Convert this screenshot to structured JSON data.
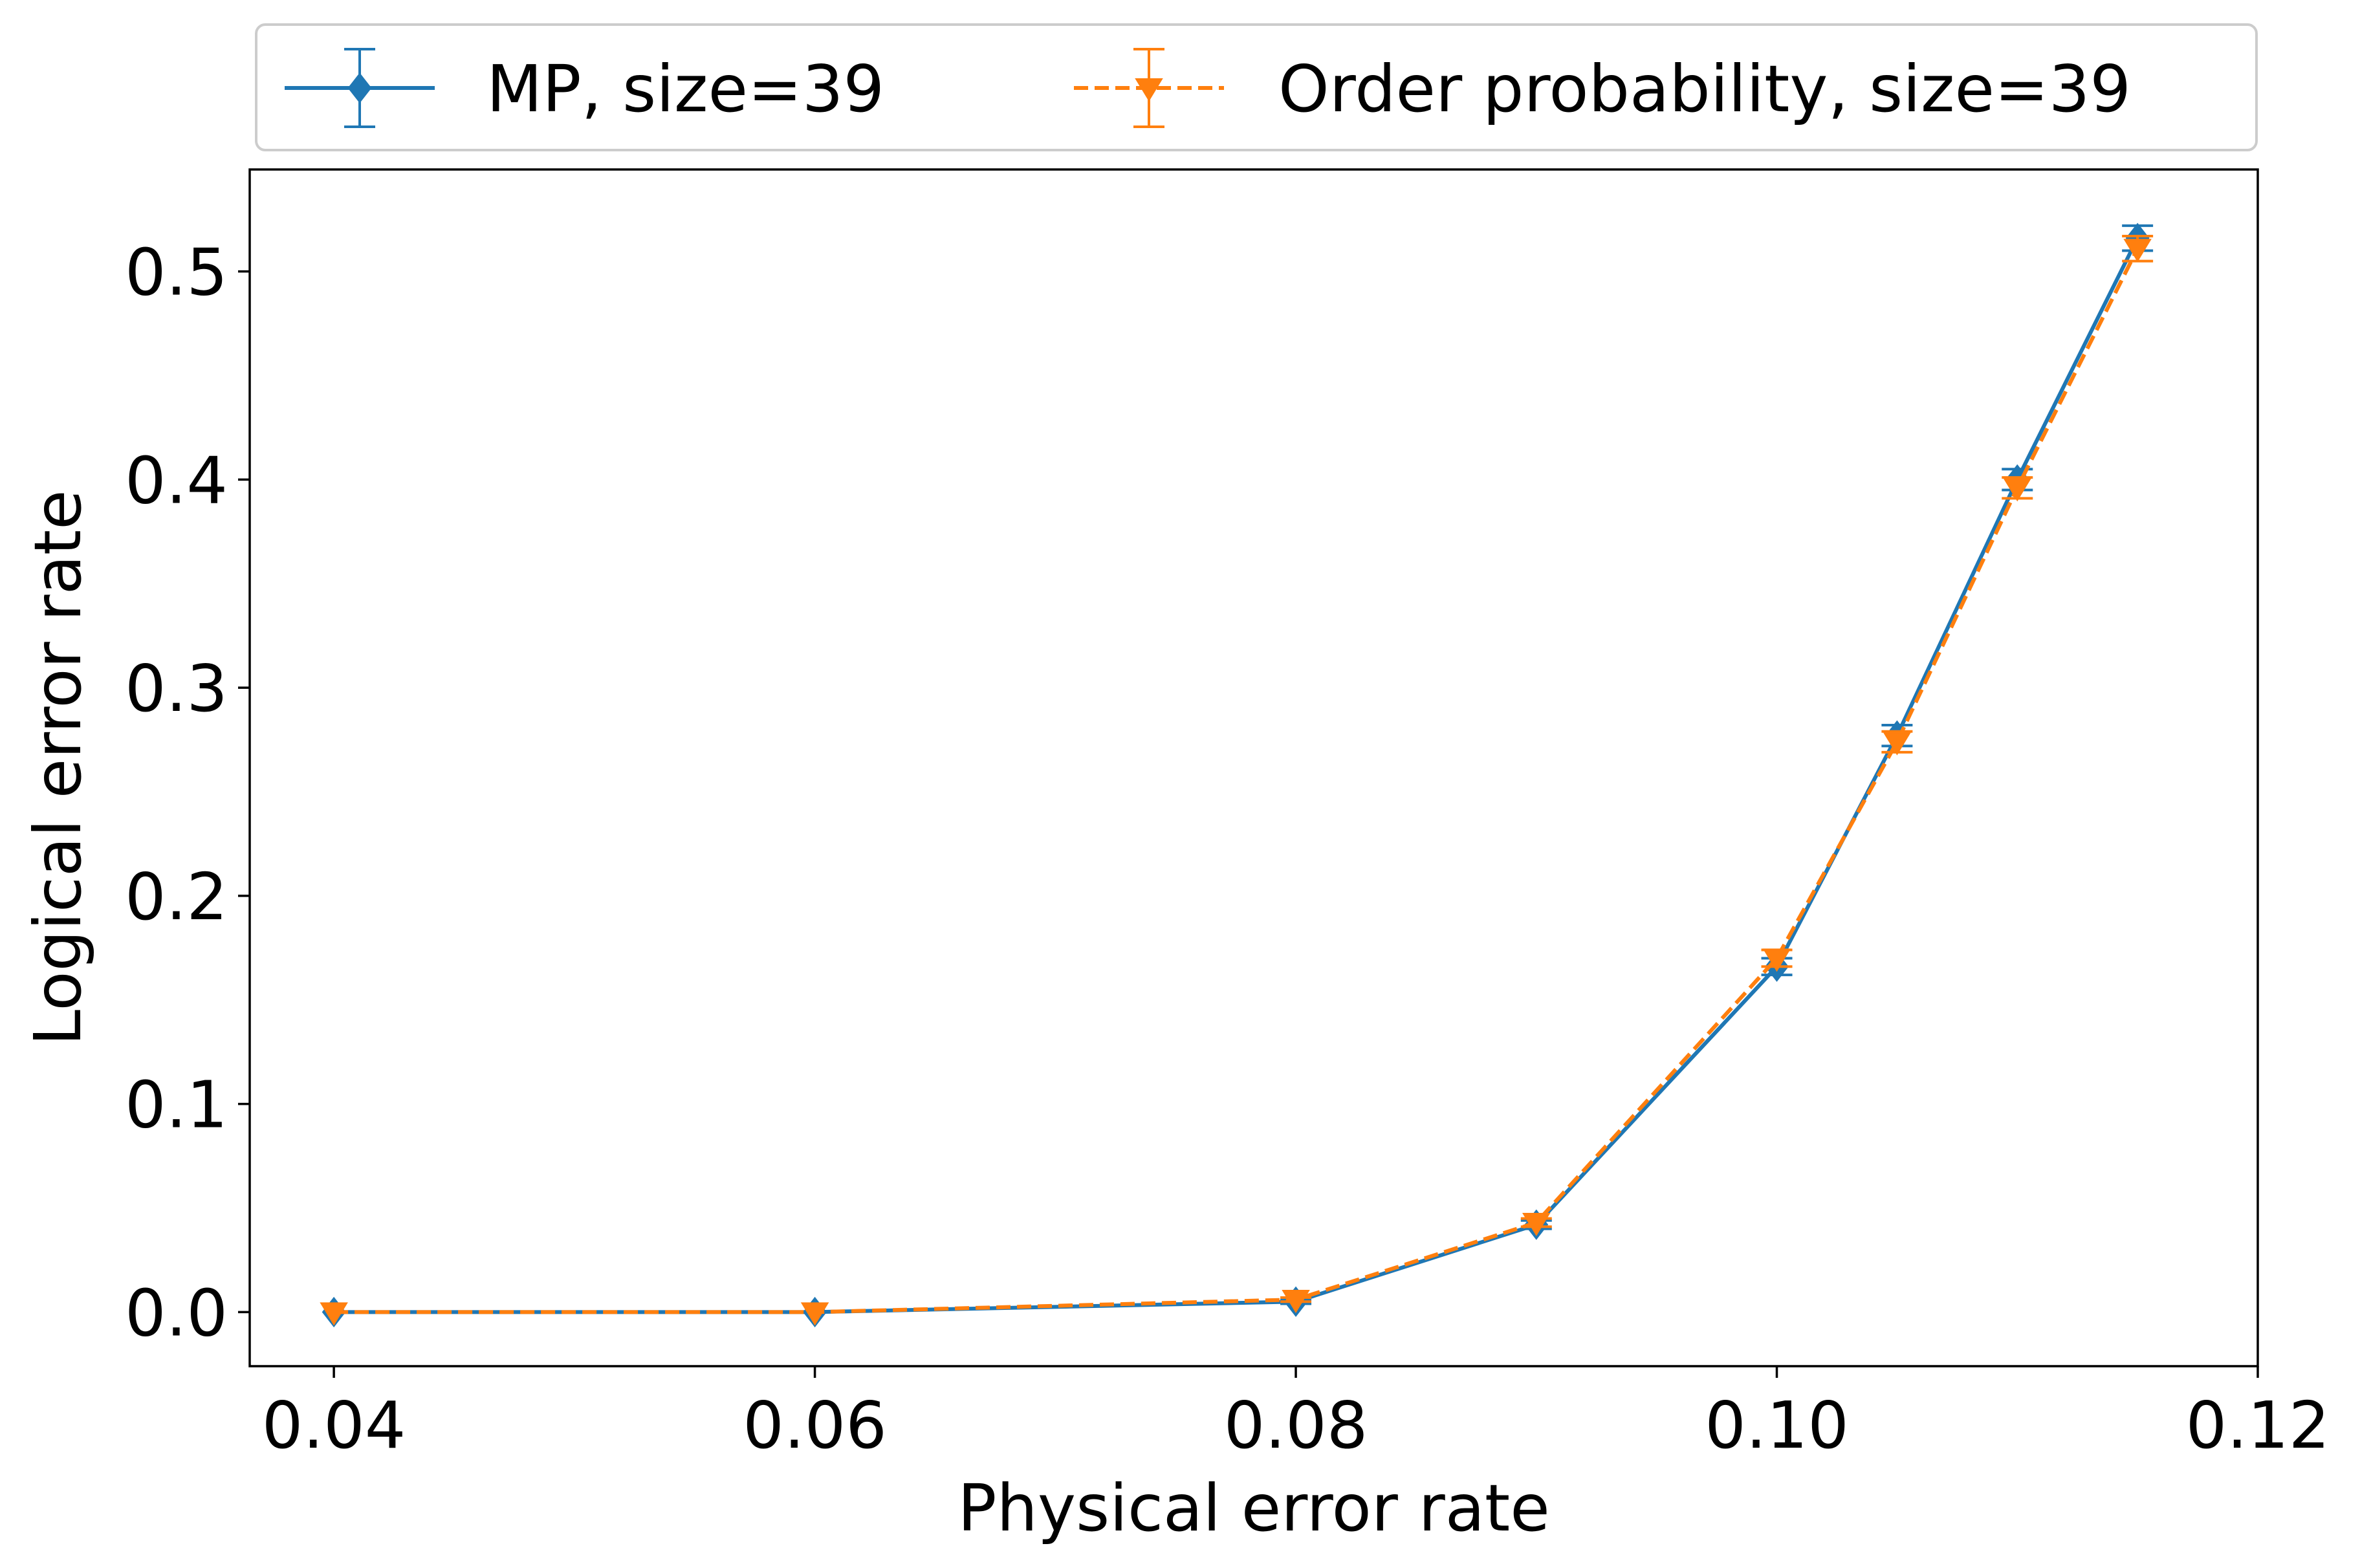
{
  "chart_data": {
    "type": "line",
    "title": "",
    "xlabel": "Physical error rate",
    "ylabel": "Logical error rate",
    "xlim": [
      0.0365,
      0.12
    ],
    "ylim": [
      -0.026,
      0.549
    ],
    "xticks": [
      0.04,
      0.06,
      0.08,
      0.1,
      0.12
    ],
    "xtick_labels": [
      "0.04",
      "0.06",
      "0.08",
      "0.10",
      "0.12"
    ],
    "yticks": [
      0.0,
      0.1,
      0.2,
      0.3,
      0.4,
      0.5
    ],
    "ytick_labels": [
      "0.0",
      "0.1",
      "0.2",
      "0.3",
      "0.4",
      "0.5"
    ],
    "grid": false,
    "legend_position": "top-center, above the plot",
    "x": [
      0.04,
      0.06,
      0.08,
      0.09,
      0.1,
      0.105,
      0.11,
      0.115
    ],
    "series": [
      {
        "name": "MP, size=39",
        "color": "#1f77b4",
        "line_style": "solid",
        "marker": "diamond",
        "values": [
          0.0,
          0.0,
          0.005,
          0.042,
          0.166,
          0.277,
          0.4,
          0.516
        ],
        "errors": [
          0.0,
          0.0,
          0.001,
          0.002,
          0.004,
          0.005,
          0.005,
          0.006
        ]
      },
      {
        "name": "Order probability, size=39",
        "color": "#ff7f0e",
        "line_style": "dashed",
        "marker": "triangle-down",
        "values": [
          0.0,
          0.0,
          0.006,
          0.043,
          0.17,
          0.274,
          0.396,
          0.511
        ],
        "errors": [
          0.0,
          0.0,
          0.001,
          0.002,
          0.004,
          0.005,
          0.005,
          0.006
        ]
      }
    ]
  }
}
